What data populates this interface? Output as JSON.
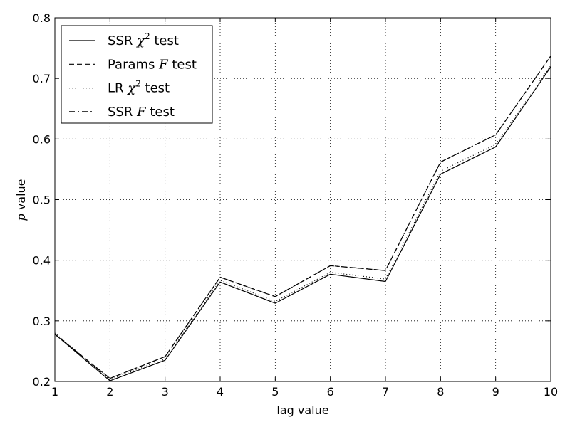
{
  "chart_data": {
    "type": "line",
    "title": "",
    "xlabel": "lag value",
    "ylabel": {
      "symbol": "p",
      "text": " value"
    },
    "xlim": [
      1,
      10
    ],
    "ylim": [
      0.2,
      0.8
    ],
    "grid": true,
    "legend_position": "top-left",
    "x": [
      1,
      2,
      3,
      4,
      5,
      6,
      7,
      8,
      9,
      10
    ],
    "xticks": [
      "1",
      "2",
      "3",
      "4",
      "5",
      "6",
      "7",
      "8",
      "9",
      "10"
    ],
    "yticks": [
      "0.2",
      "0.3",
      "0.4",
      "0.5",
      "0.6",
      "0.7",
      "0.8"
    ],
    "series": [
      {
        "name": "SSR χ² test",
        "legend": {
          "pre": "SSR ",
          "sym": "χ",
          "sup": "2",
          "post": " test"
        },
        "style": "solid",
        "values": [
          0.278,
          0.201,
          0.235,
          0.364,
          0.329,
          0.377,
          0.365,
          0.542,
          0.587,
          0.719
        ]
      },
      {
        "name": "Params F test",
        "legend": {
          "pre": "Params ",
          "sym": "F",
          "sup": "",
          "post": " test"
        },
        "style": "dashed",
        "values": [
          0.278,
          0.205,
          0.241,
          0.372,
          0.34,
          0.391,
          0.383,
          0.562,
          0.607,
          0.737
        ]
      },
      {
        "name": "LR χ² test",
        "legend": {
          "pre": "LR ",
          "sym": "χ",
          "sup": "2",
          "post": " test"
        },
        "style": "dotted",
        "values": [
          0.28,
          0.203,
          0.237,
          0.367,
          0.332,
          0.38,
          0.369,
          0.547,
          0.591,
          0.721
        ]
      },
      {
        "name": "SSR F test",
        "legend": {
          "pre": "SSR ",
          "sym": "F",
          "sup": "",
          "post": " test"
        },
        "style": "dashdot",
        "values": [
          0.278,
          0.205,
          0.241,
          0.372,
          0.34,
          0.391,
          0.383,
          0.562,
          0.607,
          0.737
        ]
      }
    ]
  }
}
